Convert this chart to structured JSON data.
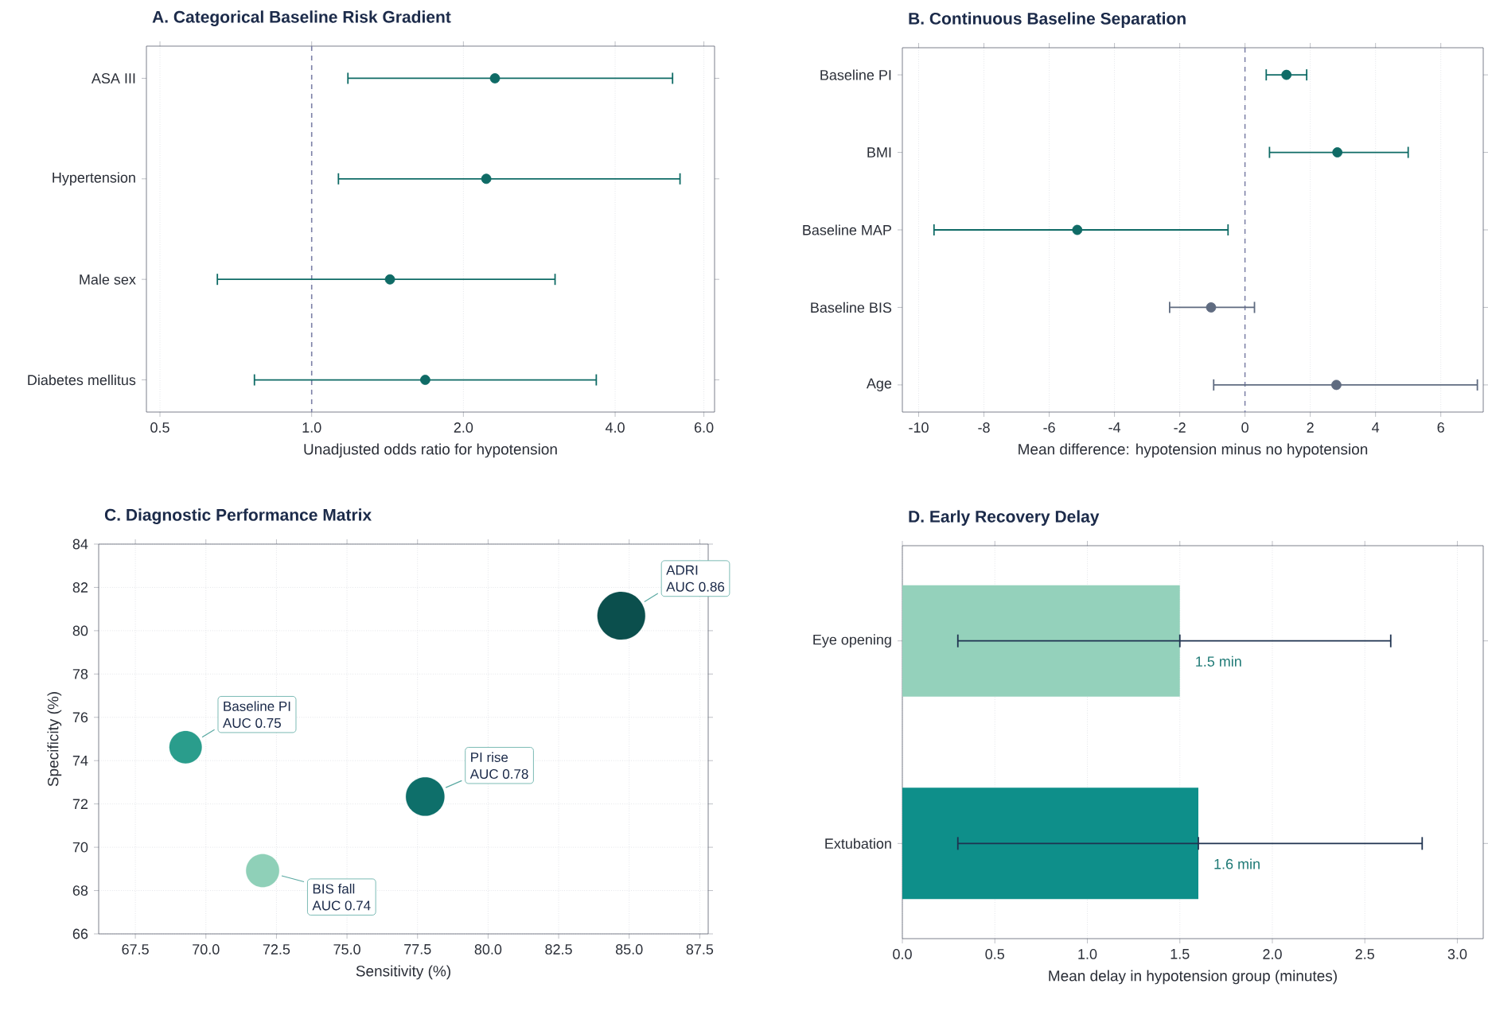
{
  "chart_data": [
    {
      "type": "scatter",
      "orientation": "horizontal",
      "title": "A. Categorical Baseline Risk Gradient",
      "xlabel": "Unadjusted odds ratio for hypotension",
      "categories": [
        "ASA III",
        "Hypertension",
        "Male sex",
        "Diabetes mellitus"
      ],
      "values": [
        2.31,
        2.22,
        1.43,
        1.68
      ],
      "errors": [
        [
          1.18,
          5.2
        ],
        [
          1.13,
          5.38
        ],
        [
          0.65,
          3.04
        ],
        [
          0.77,
          3.67
        ]
      ],
      "color": "#0f6b66",
      "marker": "circle",
      "log": "x",
      "xlim": [
        0.47,
        6.3
      ],
      "xticks": [
        0.5,
        {
          "value": 1,
          "label": "1.0"
        },
        {
          "value": 2,
          "label": "2.0"
        },
        {
          "value": 4,
          "label": "4.0"
        },
        {
          "value": 6,
          "label": "6.0"
        }
      ],
      "grid": "x",
      "ref_lines": [
        {
          "axis": "x",
          "value": 1,
          "line_style": "dashed",
          "color": "#7b7fa6"
        }
      ]
    },
    {
      "type": "scatter",
      "orientation": "horizontal",
      "title": "B. Continuous Baseline Separation",
      "xlabel": "Mean difference: hypotension minus no hypotension",
      "categories": [
        "Baseline PI",
        "BMI",
        "Baseline MAP",
        "Baseline BIS",
        "Age"
      ],
      "values": [
        1.27,
        2.83,
        -5.14,
        -1.04,
        2.8
      ],
      "errors": [
        [
          0.65,
          1.89
        ],
        [
          0.75,
          5.0
        ],
        [
          -9.53,
          -0.52
        ],
        [
          -2.31,
          0.29
        ],
        [
          -0.96,
          7.12
        ]
      ],
      "colors": [
        "#0f6b66",
        "#0f6b66",
        "#0f6b66",
        "#5f6b80",
        "#5f6b80"
      ],
      "marker": "circle",
      "xlim": [
        -10.5,
        7.3
      ],
      "xticks": [
        -10,
        -8,
        -6,
        -4,
        -2,
        0,
        2,
        4,
        6
      ],
      "grid": "x",
      "ref_lines": [
        {
          "axis": "x",
          "value": 0,
          "line_style": "dashed",
          "color": "#7b7fa6"
        }
      ]
    },
    {
      "type": "bubble",
      "title": "C. Diagnostic Performance Matrix",
      "xlabel": "Sensitivity (%)",
      "ylabel": "Specificity (%)",
      "series": [
        {
          "name": "ADRI",
          "color": "#0b4f4d",
          "x": [
            84.72
          ],
          "values": [
            80.69
          ],
          "sizes": [
            1
          ]
        },
        {
          "name": "Baseline PI",
          "color": "#2a9d8c",
          "x": [
            69.28
          ],
          "values": [
            74.62
          ],
          "sizes": [
            0.46
          ]
        },
        {
          "name": "PI rise",
          "color": "#0e6f6a",
          "x": [
            77.77
          ],
          "values": [
            72.34
          ],
          "sizes": [
            0.65
          ]
        },
        {
          "name": "BIS fall",
          "color": "#8fd0b8",
          "x": [
            72.01
          ],
          "values": [
            68.92
          ],
          "sizes": [
            0.48
          ]
        }
      ],
      "annotations": [
        "AUC 0.86",
        "AUC 0.75",
        "AUC 0.78",
        "AUC 0.74"
      ],
      "xlim": [
        66.2,
        87.8
      ],
      "ylim": [
        66,
        84
      ],
      "xticks": [
        67.5,
        {
          "value": 70,
          "label": "70.0"
        },
        72.5,
        {
          "value": 75,
          "label": "75.0"
        },
        77.5,
        {
          "value": 80,
          "label": "80.0"
        },
        82.5,
        {
          "value": 85,
          "label": "85.0"
        },
        87.5
      ],
      "yticks": [
        66,
        68,
        70,
        72,
        74,
        76,
        78,
        80,
        82,
        84
      ],
      "grid": true
    },
    {
      "type": "bar",
      "orientation": "horizontal",
      "title": "D. Early Recovery Delay",
      "xlabel": "Mean delay in hypotension group (minutes)",
      "categories": [
        "Eye opening",
        "Extubation"
      ],
      "values": [
        1.5,
        1.6
      ],
      "errors": [
        [
          0.3,
          2.64
        ],
        [
          0.3,
          2.81
        ]
      ],
      "colors": [
        "#94d1bb",
        "#0e8f8a"
      ],
      "value_labels": [
        "1.5 min",
        "1.6 min"
      ],
      "xlim": [
        0,
        3.14
      ],
      "xticks": [
        {
          "value": 0,
          "label": "0.0"
        },
        0.5,
        {
          "value": 1,
          "label": "1.0"
        },
        1.5,
        {
          "value": 2,
          "label": "2.0"
        },
        2.5,
        {
          "value": 3,
          "label": "3.0"
        }
      ],
      "grid": "x"
    }
  ]
}
